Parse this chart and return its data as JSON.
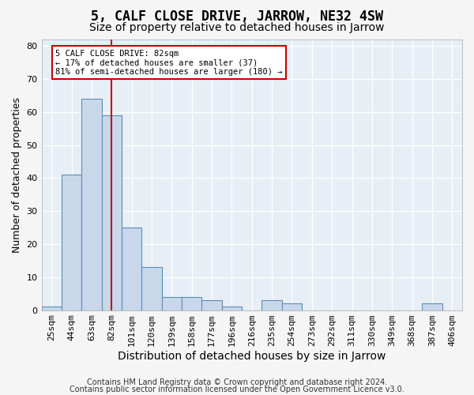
{
  "title": "5, CALF CLOSE DRIVE, JARROW, NE32 4SW",
  "subtitle": "Size of property relative to detached houses in Jarrow",
  "xlabel": "Distribution of detached houses by size in Jarrow",
  "ylabel": "Number of detached properties",
  "categories": [
    "25sqm",
    "44sqm",
    "63sqm",
    "82sqm",
    "101sqm",
    "120sqm",
    "139sqm",
    "158sqm",
    "177sqm",
    "196sqm",
    "216sqm",
    "235sqm",
    "254sqm",
    "273sqm",
    "292sqm",
    "311sqm",
    "330sqm",
    "349sqm",
    "368sqm",
    "387sqm",
    "406sqm"
  ],
  "values": [
    1,
    41,
    64,
    59,
    25,
    13,
    4,
    4,
    3,
    1,
    0,
    3,
    2,
    0,
    0,
    0,
    0,
    0,
    0,
    2,
    0
  ],
  "bar_color": "#c8d8ea",
  "bar_edge_color": "#5b8db8",
  "vline_x_index": 3,
  "vline_color": "#cc0000",
  "ylim": [
    0,
    82
  ],
  "yticks": [
    0,
    10,
    20,
    30,
    40,
    50,
    60,
    70,
    80
  ],
  "annotation_line1": "5 CALF CLOSE DRIVE: 82sqm",
  "annotation_line2": "← 17% of detached houses are smaller (37)",
  "annotation_line3": "81% of semi-detached houses are larger (180) →",
  "annotation_box_color": "#ffffff",
  "annotation_box_edge": "#cc0000",
  "footer1": "Contains HM Land Registry data © Crown copyright and database right 2024.",
  "footer2": "Contains public sector information licensed under the Open Government Licence v3.0.",
  "background_color": "#e8eef5",
  "grid_color": "#ffffff",
  "title_fontsize": 12,
  "subtitle_fontsize": 10,
  "axis_label_fontsize": 9,
  "tick_fontsize": 8,
  "footer_fontsize": 7
}
